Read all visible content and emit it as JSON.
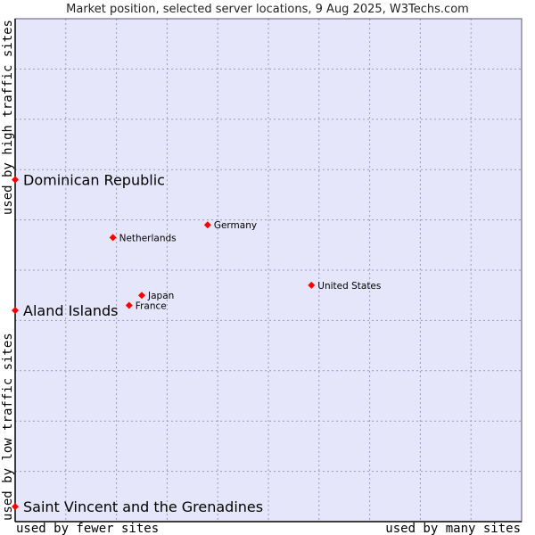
{
  "chart_data": {
    "type": "scatter",
    "title": "Market position, selected server locations, 9 Aug 2025, W3Techs.com",
    "xlabel_left": "used by fewer sites",
    "xlabel_right": "used by many sites",
    "ylabel_bottom": "used by low traffic sites",
    "ylabel_top": "used by high traffic sites",
    "xlim": [
      0,
      10
    ],
    "ylim": [
      0,
      10
    ],
    "grid": true,
    "colors": {
      "plot_bg": "#e6e6fa",
      "grid": "#9999bb",
      "marker": "#ff0000",
      "axis": "#000000"
    },
    "points": [
      {
        "name": "United States",
        "x": 5.85,
        "y": 4.7,
        "emphasis": false
      },
      {
        "name": "Germany",
        "x": 3.8,
        "y": 5.9,
        "emphasis": false
      },
      {
        "name": "Netherlands",
        "x": 1.93,
        "y": 5.65,
        "emphasis": false
      },
      {
        "name": "Japan",
        "x": 2.5,
        "y": 4.5,
        "emphasis": false
      },
      {
        "name": "France",
        "x": 2.25,
        "y": 4.3,
        "emphasis": false
      },
      {
        "name": "Dominican Republic",
        "x": 0,
        "y": 6.8,
        "emphasis": true
      },
      {
        "name": "Aland Islands",
        "x": 0,
        "y": 4.2,
        "emphasis": true
      },
      {
        "name": "Saint Vincent and the Grenadines",
        "x": 0,
        "y": 0.3,
        "emphasis": true
      }
    ]
  }
}
